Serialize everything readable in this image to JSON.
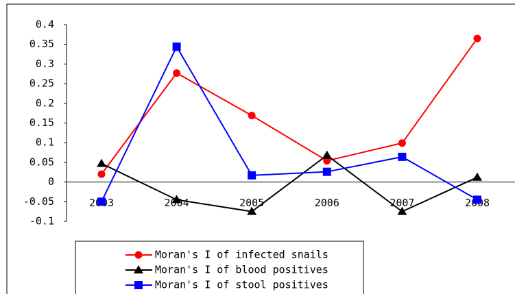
{
  "chart_data": {
    "type": "line",
    "categories": [
      "2003",
      "2004",
      "2005",
      "2006",
      "2007",
      "2008"
    ],
    "series": [
      {
        "name": "Moran's I of infected snails",
        "color": "#ff0000",
        "marker": "circle",
        "values": [
          0.02,
          0.277,
          0.169,
          0.054,
          0.099,
          0.365
        ]
      },
      {
        "name": "Moran's I of blood positives",
        "color": "#000000",
        "marker": "triangle",
        "values": [
          0.047,
          -0.045,
          -0.075,
          0.068,
          -0.075,
          0.012
        ]
      },
      {
        "name": "Moran's I of stool positives",
        "color": "#0000ff",
        "marker": "square",
        "values": [
          -0.05,
          0.344,
          0.017,
          0.026,
          0.064,
          -0.045
        ]
      }
    ],
    "ylim": [
      -0.1,
      0.4
    ],
    "yticks": [
      -0.1,
      -0.05,
      0,
      0.05,
      0.1,
      0.15,
      0.2,
      0.25,
      0.3,
      0.35,
      0.4
    ],
    "grid": false,
    "legend": "bottom"
  }
}
